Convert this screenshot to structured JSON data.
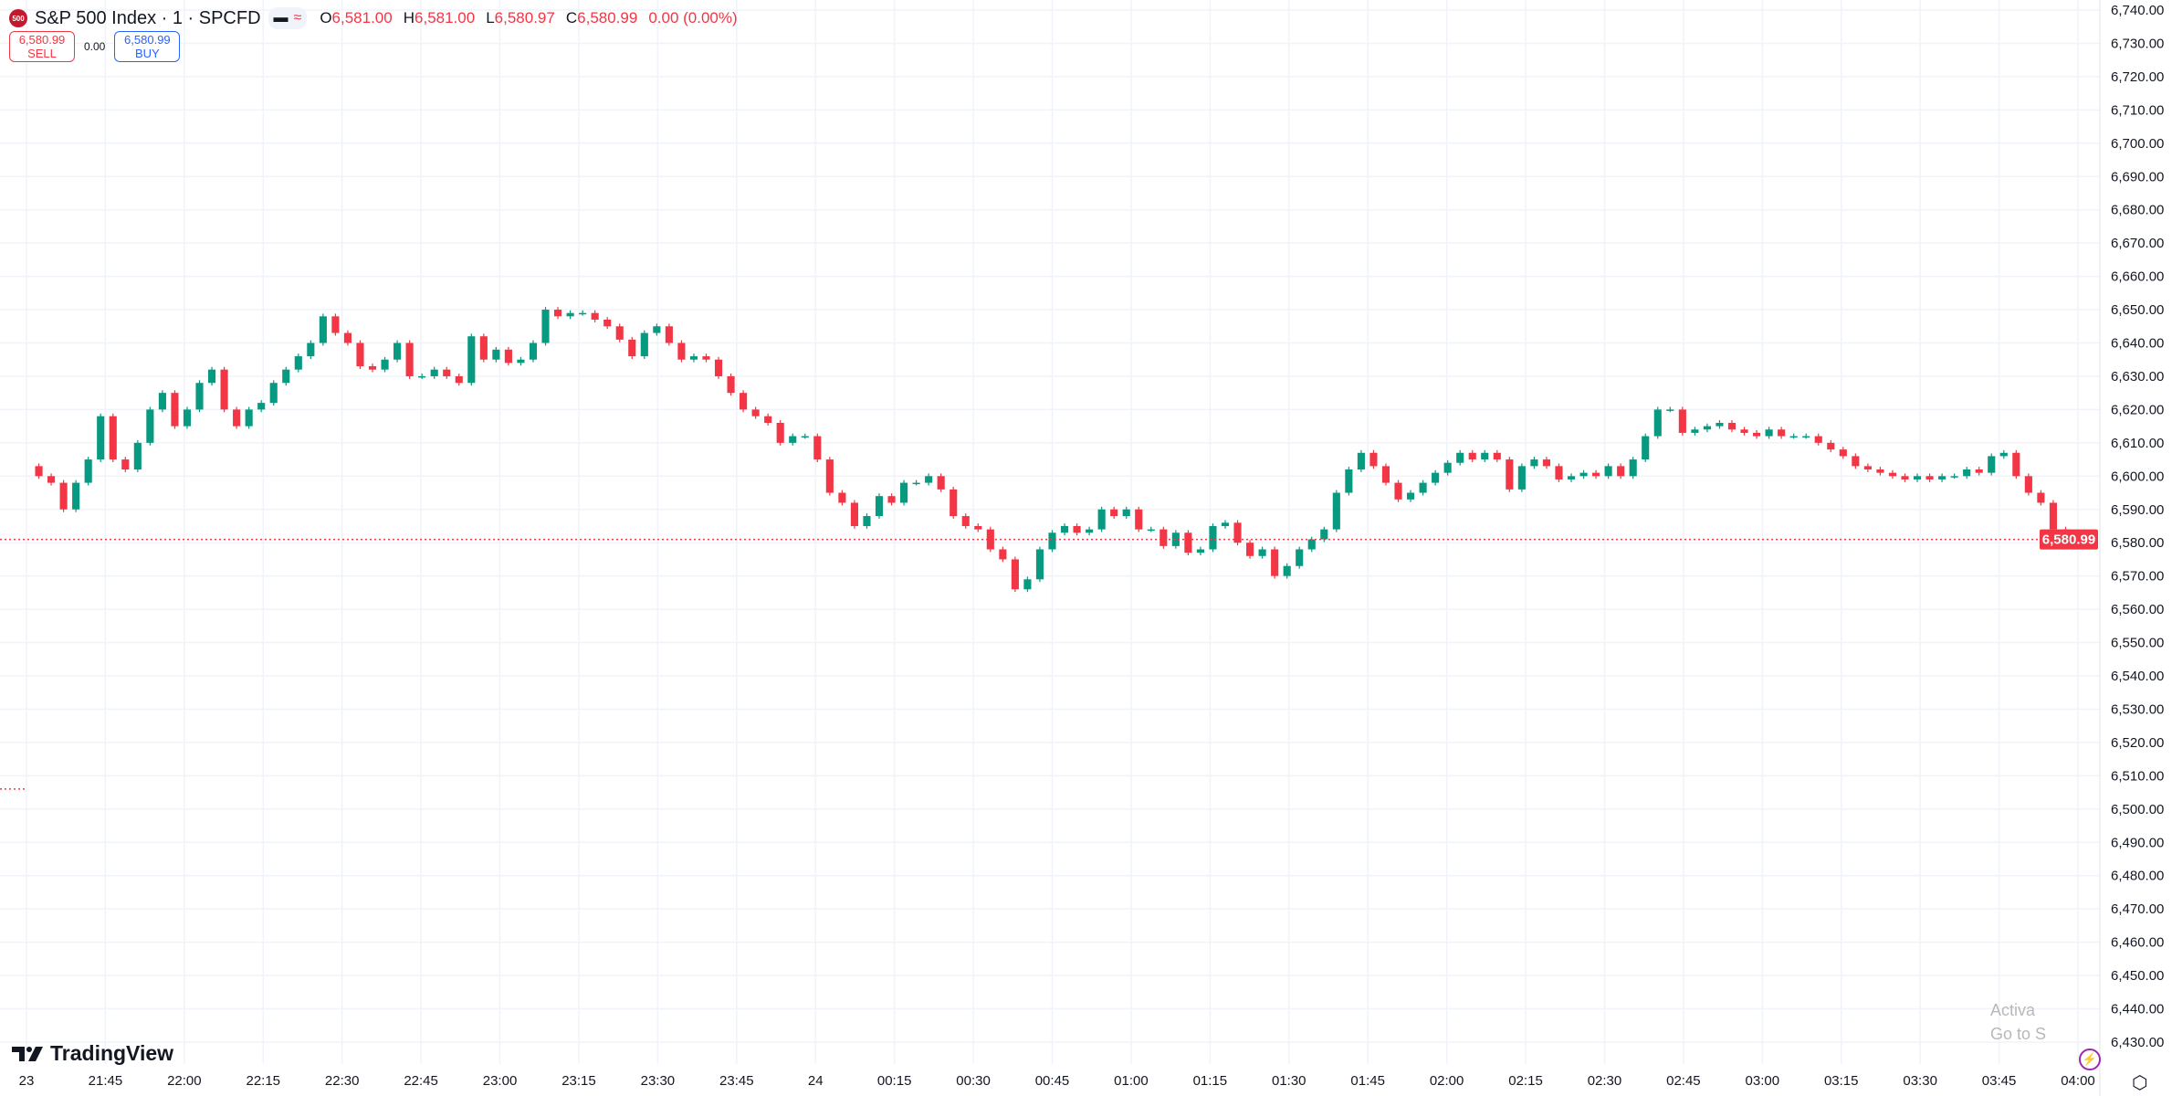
{
  "header": {
    "logo_text": "500",
    "symbol_title": "S&P 500 Index · 1 · SPCFD",
    "ohlc": [
      {
        "key": "O",
        "value": "6,581.00"
      },
      {
        "key": "H",
        "value": "6,581.00"
      },
      {
        "key": "L",
        "value": "6,580.97"
      },
      {
        "key": "C",
        "value": "6,580.99"
      }
    ],
    "change": "0.00 (0.00%)"
  },
  "trade": {
    "sell_price": "6,580.99",
    "sell_label": "SELL",
    "spread": "0.00",
    "buy_price": "6,580.99",
    "buy_label": "BUY"
  },
  "branding": {
    "logo_text": "TradingView"
  },
  "overlay": {
    "watermark_line1": "Activa",
    "watermark_line2": "Go to S"
  },
  "colors": {
    "up": "#089981",
    "down": "#F23645",
    "last_price": "#F23645",
    "grid": "#F0F3FA"
  },
  "chart_data": {
    "type": "candlestick",
    "title": "",
    "interval": "1",
    "x_range": [
      "21:30",
      "04:00"
    ],
    "ylim": [
      6425,
      6745
    ],
    "grid": true,
    "last_price": 6580.99,
    "last_price_label": "6,580.99",
    "prior_line": 6506,
    "y_tick_labels": [
      "6,740.00",
      "6,730.00",
      "6,720.00",
      "6,710.00",
      "6,700.00",
      "6,690.00",
      "6,680.00",
      "6,670.00",
      "6,660.00",
      "6,650.00",
      "6,640.00",
      "6,630.00",
      "6,620.00",
      "6,610.00",
      "6,600.00",
      "6,590.00",
      "6,580.00",
      "6,570.00",
      "6,560.00",
      "6,550.00",
      "6,540.00",
      "6,530.00",
      "6,520.00",
      "6,510.00",
      "6,500.00",
      "6,490.00",
      "6,480.00",
      "6,470.00",
      "6,460.00",
      "6,450.00",
      "6,440.00",
      "6,430.00"
    ],
    "x_tick_labels": [
      "23",
      "21:45",
      "22:00",
      "22:15",
      "22:30",
      "22:45",
      "23:00",
      "23:15",
      "23:30",
      "23:45",
      "24",
      "00:15",
      "00:30",
      "00:45",
      "01:00",
      "01:15",
      "01:30",
      "01:45",
      "02:00",
      "02:15",
      "02:30",
      "02:45",
      "03:00",
      "03:15",
      "03:30",
      "03:45",
      "04:00"
    ],
    "close": [
      6603,
      6600,
      6598,
      6590,
      6598,
      6605,
      6618,
      6605,
      6602,
      6610,
      6620,
      6625,
      6615,
      6620,
      6628,
      6632,
      6620,
      6615,
      6620,
      6622,
      6628,
      6632,
      6636,
      6640,
      6648,
      6643,
      6640,
      6633,
      6632,
      6635,
      6640,
      6630,
      6630,
      6632,
      6630,
      6628,
      6642,
      6635,
      6638,
      6634,
      6635,
      6640,
      6650,
      6648,
      6649,
      6649,
      6647,
      6645,
      6641,
      6636,
      6643,
      6645,
      6640,
      6635,
      6636,
      6635,
      6630,
      6625,
      6620,
      6618,
      6616,
      6610,
      6612,
      6612,
      6605,
      6595,
      6592,
      6585,
      6588,
      6594,
      6592,
      6598,
      6598,
      6600,
      6596,
      6588,
      6585,
      6584,
      6578,
      6575,
      6566,
      6569,
      6578,
      6583,
      6585,
      6583,
      6584,
      6590,
      6588,
      6590,
      6584,
      6584,
      6579,
      6583,
      6577,
      6578,
      6585,
      6586,
      6580,
      6576,
      6578,
      6570,
      6573,
      6578,
      6581,
      6584,
      6595,
      6602,
      6607,
      6603,
      6598,
      6593,
      6595,
      6598,
      6601,
      6604,
      6607,
      6605,
      6607,
      6605,
      6596,
      6603,
      6605,
      6603,
      6599,
      6600,
      6601,
      6600,
      6603,
      6600,
      6605,
      6612,
      6620,
      6620,
      6613,
      6614,
      6615,
      6616,
      6614,
      6613,
      6612,
      6614,
      6612,
      6612,
      6612,
      6610,
      6608,
      6606,
      6603,
      6602,
      6601,
      6600,
      6599,
      6600,
      6599,
      6600,
      6600,
      6602,
      6601,
      6606,
      6607,
      6600,
      6595,
      6592,
      6584,
      6581,
      6580.99
    ]
  }
}
